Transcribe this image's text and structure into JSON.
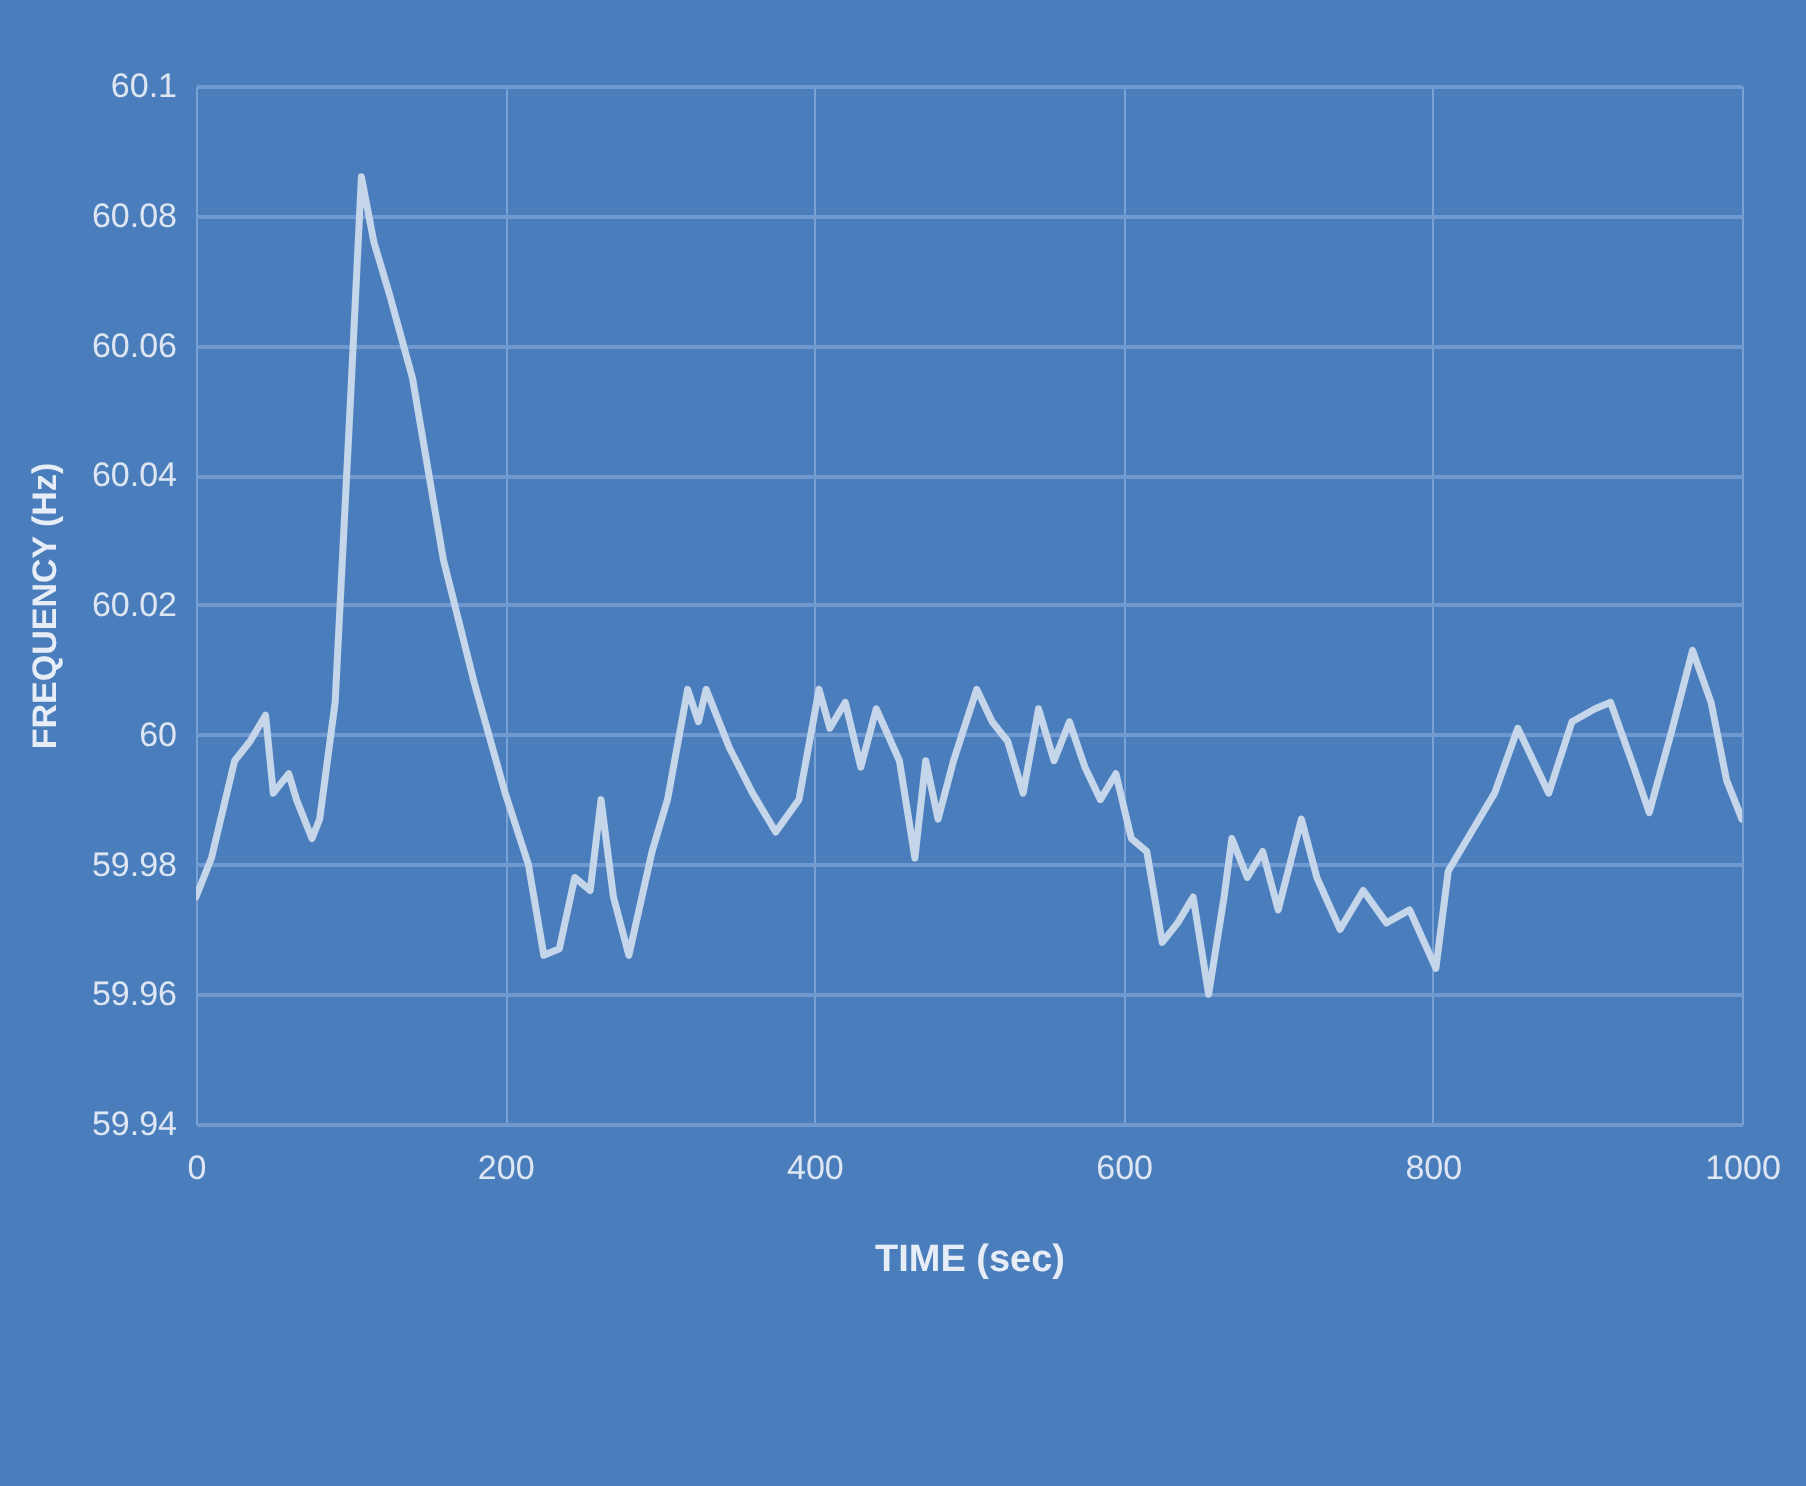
{
  "chart_data": {
    "type": "line",
    "xlabel": "TIME (sec)",
    "ylabel": "FREQUENCY (Hz)",
    "xlim": [
      0,
      1000
    ],
    "xticks": [
      0,
      200,
      400,
      600,
      800,
      1000
    ],
    "ylim": [
      59.94,
      60.1
    ],
    "yticks": [
      59.94,
      59.96,
      59.98,
      60,
      60.02,
      60.04,
      60.06,
      60.08,
      60.1
    ],
    "grid": true,
    "series": [
      {
        "color": "#c5d5ea",
        "x": [
          0,
          10,
          25,
          35,
          45,
          50,
          60,
          65,
          75,
          80,
          90,
          100,
          107,
          115,
          125,
          140,
          160,
          180,
          200,
          215,
          225,
          235,
          245,
          255,
          262,
          270,
          280,
          295,
          305,
          318,
          325,
          330,
          345,
          360,
          375,
          390,
          403,
          410,
          420,
          430,
          440,
          455,
          465,
          472,
          480,
          490,
          505,
          515,
          525,
          535,
          545,
          555,
          565,
          575,
          585,
          595,
          605,
          615,
          625,
          635,
          645,
          655,
          665,
          670,
          680,
          690,
          700,
          715,
          725,
          740,
          755,
          770,
          785,
          802,
          810,
          825,
          840,
          855,
          865,
          875,
          890,
          905,
          915,
          930,
          940,
          955,
          968,
          980,
          990,
          1000
        ],
        "values": [
          59.975,
          59.981,
          59.996,
          59.999,
          60.003,
          59.991,
          59.994,
          59.99,
          59.984,
          59.987,
          60.005,
          60.052,
          60.086,
          60.076,
          60.068,
          60.055,
          60.027,
          60.008,
          59.991,
          59.98,
          59.966,
          59.967,
          59.978,
          59.976,
          59.99,
          59.975,
          59.966,
          59.982,
          59.99,
          60.007,
          60.002,
          60.007,
          59.998,
          59.991,
          59.985,
          59.99,
          60.007,
          60.001,
          60.005,
          59.995,
          60.004,
          59.996,
          59.981,
          59.996,
          59.987,
          59.996,
          60.007,
          60.002,
          59.999,
          59.991,
          60.004,
          59.996,
          60.002,
          59.995,
          59.99,
          59.994,
          59.984,
          59.982,
          59.968,
          59.971,
          59.975,
          59.96,
          59.975,
          59.984,
          59.978,
          59.982,
          59.973,
          59.987,
          59.978,
          59.97,
          59.976,
          59.971,
          59.973,
          59.964,
          59.979,
          59.985,
          59.991,
          60.001,
          59.996,
          59.991,
          60.002,
          60.004,
          60.005,
          59.995,
          59.988,
          60.001,
          60.013,
          60.005,
          59.993,
          59.987
        ]
      }
    ]
  }
}
